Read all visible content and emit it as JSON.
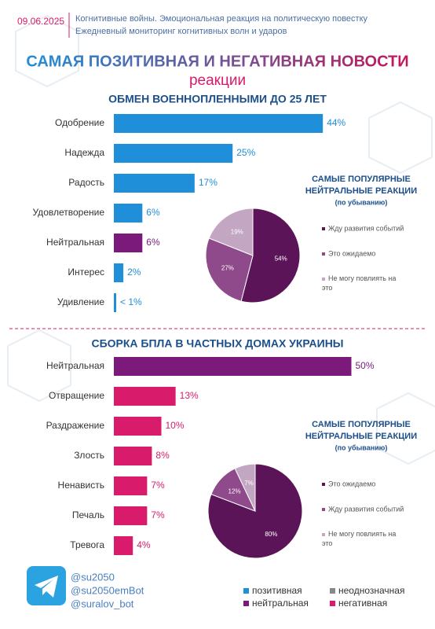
{
  "header": {
    "date": "09.06.2025",
    "line1": "Когнитивные войны. Эмоциональная реакция на политическую повестку",
    "line2": "Ежедневный мониторинг когнитивных волн и ударов",
    "title": "САМАЯ ПОЗИТИВНАЯ И НЕГАТИВНАЯ НОВОСТИ",
    "title2": "реакции"
  },
  "chart_data": [
    {
      "type": "bar",
      "title": "ОБМЕН ВОЕННОПЛЕННЫМИ ДО 25 ЛЕТ",
      "categories": [
        "Одобрение",
        "Надежда",
        "Радость",
        "Удовлетворение",
        "Нейтральная",
        "Интерес",
        "Удивление"
      ],
      "values": [
        44,
        25,
        17,
        6,
        6,
        2,
        0.5
      ],
      "value_labels": [
        "44%",
        "25%",
        "17%",
        "6%",
        "6%",
        "2%",
        "< 1%"
      ],
      "colors": [
        "#1e8fd8",
        "#1e8fd8",
        "#1e8fd8",
        "#1e8fd8",
        "#7b1a7b",
        "#1e8fd8",
        "#1e8fd8"
      ]
    },
    {
      "type": "pie",
      "title": "САМЫЕ ПОПУЛЯРНЫЕ НЕЙТРАЛЬНЫЕ РЕАКЦИИ",
      "subtitle": "(по убыванию)",
      "categories": [
        "Жду развития событий",
        "Это ожидаемо",
        "Не могу повлиять на это"
      ],
      "values": [
        54,
        27,
        19
      ],
      "value_labels": [
        "54%",
        "27%",
        "19%"
      ],
      "colors": [
        "#5b1457",
        "#8e4a8a",
        "#c2a6c2"
      ]
    },
    {
      "type": "bar",
      "title": "СБОРКА БПЛА В ЧАСТНЫХ ДОМАХ УКРАИНЫ",
      "categories": [
        "Нейтральная",
        "Отвращение",
        "Раздражение",
        "Злость",
        "Ненависть",
        "Печаль",
        "Тревога"
      ],
      "values": [
        50,
        13,
        10,
        8,
        7,
        7,
        4
      ],
      "value_labels": [
        "50%",
        "13%",
        "10%",
        "8%",
        "7%",
        "7%",
        "4%"
      ],
      "colors": [
        "#7b1a7b",
        "#d81b6a",
        "#d81b6a",
        "#d81b6a",
        "#d81b6a",
        "#d81b6a",
        "#d81b6a"
      ]
    },
    {
      "type": "pie",
      "title": "САМЫЕ ПОПУЛЯРНЫЕ НЕЙТРАЛЬНЫЕ РЕАКЦИИ",
      "subtitle": "(по убыванию)",
      "categories": [
        "Это ожидаемо",
        "Жду развития событий",
        "Не могу повлиять на это"
      ],
      "values": [
        80,
        12,
        7
      ],
      "value_labels": [
        "80%",
        "12%",
        "7%"
      ],
      "colors": [
        "#5b1457",
        "#8e4a8a",
        "#c2a6c2"
      ]
    }
  ],
  "footer": {
    "handles": [
      "@su2050",
      "@su2050emBot",
      "@suralov_bot"
    ]
  },
  "legend": [
    {
      "name": "позитивная",
      "color": "#1e8fd8"
    },
    {
      "name": "неоднозначная",
      "color": "#888888"
    },
    {
      "name": "нейтральная",
      "color": "#7b1a7b"
    },
    {
      "name": "негативная",
      "color": "#d81b6a"
    }
  ]
}
